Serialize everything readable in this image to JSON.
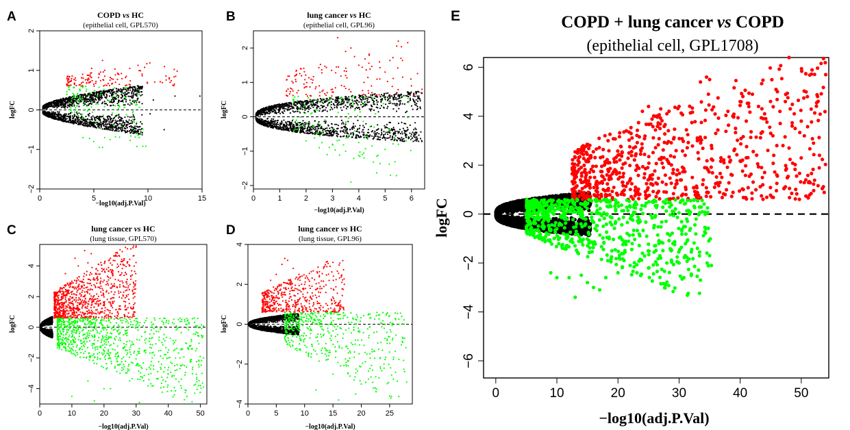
{
  "chart_data": [
    {
      "panel": "A",
      "type": "scatter",
      "title_parts": [
        {
          "text": "COPD ",
          "italic": false
        },
        {
          "text": "vs",
          "italic": true
        },
        {
          "text": " HC",
          "italic": false
        }
      ],
      "subtitle": "(epithelial cell, GPL570)",
      "xlabel": "−log10(adj.P.Val)",
      "ylabel": "logFC",
      "xlim": [
        0,
        15
      ],
      "ylim": [
        -2,
        2
      ],
      "xticks": [
        0,
        5,
        10,
        15
      ],
      "yticks": [
        -2,
        -1,
        0,
        1,
        2
      ],
      "reference_line": 0,
      "series": [
        {
          "color": "#ff0000",
          "min_y": 0.6,
          "points": [
            [
              4,
              0.7
            ],
            [
              4.5,
              0.8
            ],
            [
              5,
              0.65
            ],
            [
              5.5,
              0.9
            ],
            [
              6,
              1.0
            ],
            [
              6.5,
              0.75
            ],
            [
              5.8,
              1.25
            ],
            [
              7,
              0.7
            ],
            [
              8,
              0.85
            ],
            [
              12.7,
              0.98
            ],
            [
              6.2,
              0.62
            ],
            [
              4.8,
              1.05
            ],
            [
              5.2,
              0.72
            ]
          ]
        },
        {
          "color": "#00ff00",
          "min_y": -0.6,
          "points": [
            [
              4,
              -0.7
            ],
            [
              5,
              -0.8
            ],
            [
              5.5,
              -0.95
            ],
            [
              6,
              -0.7
            ],
            [
              6.5,
              -0.75
            ],
            [
              7,
              -0.68
            ],
            [
              9.8,
              -0.92
            ],
            [
              5.8,
              -0.95
            ],
            [
              4.6,
              -0.72
            ]
          ]
        },
        {
          "color": "#000000",
          "envelope": {
            "x0": 0.3,
            "xmax": 9.5,
            "amp": 0.55,
            "base": 0.08,
            "pow": 0.6
          },
          "extra": [
            [
              10.5,
              0.25
            ],
            [
              12.5,
              0.35
            ],
            [
              14.8,
              0.35
            ],
            [
              11.5,
              -0.5
            ],
            [
              10.2,
              -0.1
            ]
          ]
        }
      ]
    },
    {
      "panel": "B",
      "type": "scatter",
      "title_parts": [
        {
          "text": "lung cancer ",
          "italic": false
        },
        {
          "text": "vs",
          "italic": true
        },
        {
          "text": " HC",
          "italic": false
        }
      ],
      "subtitle": "(epithelial cell, GPL96)",
      "xlabel": "−log10(adj.P.Val)",
      "ylabel": "logFC",
      "xlim": [
        0,
        6.5
      ],
      "ylim": [
        -2.1,
        2.5
      ],
      "xticks": [
        0,
        1,
        2,
        3,
        4,
        5,
        6
      ],
      "yticks": [
        -2,
        -1,
        0,
        1,
        2
      ],
      "reference_line": 0,
      "series": [
        {
          "color": "#ff0000",
          "min_y": 0.6,
          "points": [
            [
              2,
              0.65
            ],
            [
              2.5,
              0.9
            ],
            [
              3,
              0.8
            ],
            [
              3.5,
              1.2
            ],
            [
              3.5,
              1.9
            ],
            [
              3.7,
              2.0
            ],
            [
              4,
              1.5
            ],
            [
              4.2,
              1.0
            ],
            [
              4.5,
              0.7
            ],
            [
              5,
              1.3
            ],
            [
              5.5,
              2.2
            ],
            [
              5.6,
              1.7
            ],
            [
              6,
              0.9
            ],
            [
              6.4,
              0.8
            ],
            [
              3.2,
              2.3
            ],
            [
              4.8,
              1.1
            ],
            [
              2.8,
              0.7
            ],
            [
              1.5,
              0.62
            ]
          ]
        },
        {
          "color": "#00ff00",
          "min_y": -0.6,
          "points": [
            [
              2,
              -0.7
            ],
            [
              2.5,
              -0.9
            ],
            [
              3,
              -0.8
            ],
            [
              3.5,
              -1.0
            ],
            [
              4,
              -0.75
            ],
            [
              4.5,
              -0.85
            ],
            [
              5,
              -0.95
            ],
            [
              5.2,
              -1.7
            ],
            [
              5.5,
              -0.8
            ],
            [
              6,
              -0.65
            ],
            [
              3.7,
              -1.9
            ],
            [
              2.8,
              -1.1
            ],
            [
              4.2,
              -1.2
            ],
            [
              5.8,
              -0.7
            ]
          ]
        },
        {
          "color": "#000000",
          "envelope": {
            "x0": 0.1,
            "xmax": 6.4,
            "amp": 0.7,
            "base": 0.05,
            "pow": 0.4
          },
          "extra": []
        }
      ]
    },
    {
      "panel": "C",
      "type": "scatter",
      "title_parts": [
        {
          "text": "lung cancer ",
          "italic": false
        },
        {
          "text": "vs",
          "italic": true
        },
        {
          "text": " HC",
          "italic": false
        }
      ],
      "subtitle": "(lung tissue, GPL570)",
      "xlabel": "−log10(adj.P.Val)",
      "ylabel": "logFC",
      "xlim": [
        0,
        52
      ],
      "ylim": [
        -5,
        5.4
      ],
      "xticks": [
        0,
        10,
        20,
        30,
        40,
        50
      ],
      "yticks": [
        -4,
        -2,
        0,
        2,
        4
      ],
      "reference_line": 0,
      "series": [
        {
          "color": "#ff0000",
          "min_y": 0.6,
          "points": [
            [
              10,
              3.0
            ],
            [
              12,
              4.0
            ],
            [
              14,
              5.0
            ],
            [
              15,
              4.2
            ],
            [
              18,
              3.3
            ],
            [
              20,
              3.8
            ],
            [
              22,
              4.5
            ],
            [
              25,
              3.0
            ],
            [
              30,
              5.3
            ],
            [
              8,
              3.5
            ],
            [
              26,
              2.7
            ],
            [
              16,
              4.8
            ],
            [
              11,
              4.5
            ],
            [
              19,
              2.3
            ]
          ]
        },
        {
          "color": "#00ff00",
          "min_y": -0.6,
          "points": [
            [
              15,
              -3.5
            ],
            [
              20,
              -4.0
            ],
            [
              25,
              -3.0
            ],
            [
              28,
              -3.5
            ],
            [
              30,
              -2.5
            ],
            [
              31,
              -4.9
            ],
            [
              35,
              -2.0
            ],
            [
              40,
              -2.0
            ],
            [
              42,
              -2.5
            ],
            [
              45,
              -2.5
            ],
            [
              50,
              -3.8
            ],
            [
              51,
              -2.0
            ],
            [
              33,
              -1.5
            ],
            [
              38,
              -1.0
            ],
            [
              47,
              -1.2
            ],
            [
              10,
              -4.5
            ],
            [
              17,
              -4.8
            ],
            [
              22,
              -4.0
            ]
          ]
        },
        {
          "color": "#000000",
          "envelope": {
            "x0": 0.3,
            "xmax": 4.0,
            "amp": 0.6,
            "base": 0.1,
            "pow": 0.5
          },
          "extra": []
        }
      ]
    },
    {
      "panel": "D",
      "type": "scatter",
      "title_parts": [
        {
          "text": "lung cancer ",
          "italic": false
        },
        {
          "text": "vs",
          "italic": true
        },
        {
          "text": " HC",
          "italic": false
        }
      ],
      "subtitle": "(lung tissue, GPL96)",
      "xlabel": "−log10(adj.P.Val)",
      "ylabel": "logFC",
      "xlim": [
        0,
        29
      ],
      "ylim": [
        -4,
        4
      ],
      "xticks": [
        0,
        5,
        10,
        15,
        20,
        25
      ],
      "yticks": [
        -4,
        -2,
        0,
        2,
        4
      ],
      "reference_line": 0,
      "series": [
        {
          "color": "#ff0000",
          "min_y": 0.6,
          "points": [
            [
              5,
              2.5
            ],
            [
              6,
              3.0
            ],
            [
              7,
              3.2
            ],
            [
              8,
              2.8
            ],
            [
              9,
              2.5
            ],
            [
              10,
              2.0
            ],
            [
              11,
              1.8
            ],
            [
              15,
              3.1
            ],
            [
              17,
              2.0
            ],
            [
              6.5,
              3.3
            ],
            [
              4,
              2.2
            ]
          ]
        },
        {
          "color": "#00ff00",
          "min_y": -0.6,
          "points": [
            [
              15,
              -2.5
            ],
            [
              18,
              -2.6
            ],
            [
              20,
              -3.0
            ],
            [
              22,
              -2.3
            ],
            [
              25,
              -3.6
            ],
            [
              28,
              -2.9
            ],
            [
              19,
              -3.5
            ],
            [
              24,
              -2.0
            ],
            [
              12,
              -3.3
            ],
            [
              16,
              -3.8
            ],
            [
              21,
              -1.5
            ]
          ]
        },
        {
          "color": "#000000",
          "envelope": {
            "x0": 0.2,
            "xmax": 9.0,
            "amp": 0.5,
            "base": 0.05,
            "pow": 0.5
          },
          "extra": []
        }
      ]
    },
    {
      "panel": "E",
      "type": "scatter",
      "title_parts": [
        {
          "text": "COPD + lung cancer ",
          "italic": false
        },
        {
          "text": "vs",
          "italic": true
        },
        {
          "text": " COPD",
          "italic": false
        }
      ],
      "subtitle": "(epithelial cell, GPL1708)",
      "xlabel": "−log10(adj.P.Val)",
      "ylabel": "logFC",
      "xlim": [
        -2,
        54.5
      ],
      "ylim": [
        -6.7,
        6.4
      ],
      "xticks": [
        0,
        10,
        20,
        30,
        40,
        50
      ],
      "yticks": [
        -6,
        -4,
        -2,
        0,
        2,
        4,
        6
      ],
      "reference_line": 0,
      "series": [
        {
          "color": "#ff0000",
          "min_y": 0.6,
          "points": [
            [
              24,
              4.2
            ],
            [
              25,
              4.4
            ],
            [
              26,
              4.0
            ],
            [
              27,
              4.3
            ],
            [
              28,
              4.1
            ],
            [
              30,
              4.4
            ],
            [
              33.5,
              5.4
            ],
            [
              34.5,
              5.6
            ],
            [
              35,
              5.5
            ],
            [
              34.8,
              4.9
            ],
            [
              36,
              3.3
            ],
            [
              38,
              4.2
            ],
            [
              40,
              4.6
            ],
            [
              41,
              3.8
            ],
            [
              42,
              4.9
            ],
            [
              43,
              4.4
            ],
            [
              44,
              4.1
            ],
            [
              45,
              3.3
            ],
            [
              46,
              2.8
            ],
            [
              47,
              2.8
            ],
            [
              48,
              6.4
            ],
            [
              48.2,
              4.3
            ],
            [
              48.5,
              3.6
            ],
            [
              49,
              3.5
            ],
            [
              50,
              3.8
            ],
            [
              51,
              4.8
            ],
            [
              54,
              5.7
            ],
            [
              44,
              1.7
            ],
            [
              46,
              1.6
            ],
            [
              48,
              2.7
            ],
            [
              52,
              2.9
            ],
            [
              50.5,
              3.2
            ],
            [
              41,
              2.3
            ],
            [
              39,
              2.6
            ],
            [
              37,
              1.5
            ],
            [
              35.5,
              2.2
            ],
            [
              43.5,
              1.9
            ],
            [
              45.5,
              2.4
            ],
            [
              33,
              3.0
            ],
            [
              31,
              2.4
            ]
          ]
        },
        {
          "color": "#00ff00",
          "min_y": -0.6,
          "points": [
            [
              9,
              -2.4
            ],
            [
              10,
              -2.6
            ],
            [
              12,
              -2.6
            ],
            [
              13,
              -3.4
            ],
            [
              14,
              -2.5
            ],
            [
              15,
              -2.8
            ],
            [
              16,
              -3.0
            ],
            [
              17,
              -3.1
            ],
            [
              18,
              -2.6
            ],
            [
              20,
              -2.4
            ],
            [
              22,
              -2.1
            ],
            [
              25,
              -2.2
            ],
            [
              28,
              -2.0
            ],
            [
              30,
              -2.0
            ],
            [
              33,
              -1.4
            ],
            [
              33.5,
              -2.7
            ],
            [
              35,
              -1.7
            ],
            [
              35.3,
              -2.1
            ],
            [
              31,
              -1.7
            ],
            [
              29,
              -1.2
            ],
            [
              27,
              -1.8
            ],
            [
              24,
              -1.6
            ],
            [
              21,
              -1.9
            ],
            [
              26,
              -1.3
            ],
            [
              19,
              -1.5
            ]
          ]
        },
        {
          "color": "#000000",
          "envelope": {
            "x0": 0.05,
            "xmax": 15.5,
            "amp": 0.85,
            "base": 0.03,
            "pow": 0.35
          },
          "extra": []
        }
      ]
    }
  ],
  "panel_labels": [
    "A",
    "B",
    "C",
    "D",
    "E"
  ]
}
